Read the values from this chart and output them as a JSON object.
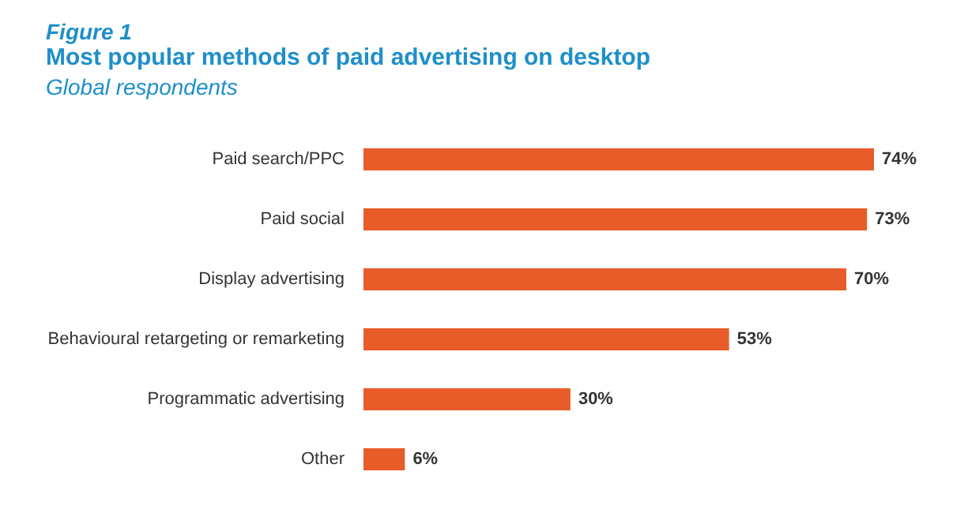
{
  "chart_data": {
    "type": "bar",
    "orientation": "horizontal",
    "title": "Most popular methods of paid advertising on desktop",
    "subtitle": "Global respondents",
    "annotations": [
      "Figure 1"
    ],
    "categories": [
      "Paid search/PPC",
      "Paid social",
      "Display advertising",
      "Behavioural retargeting or remarketing",
      "Programmatic advertising",
      "Other"
    ],
    "values": [
      74,
      73,
      70,
      53,
      30,
      6
    ],
    "value_labels": [
      "74%",
      "73%",
      "70%",
      "53%",
      "30%",
      "6%"
    ],
    "color": "#e85c2a"
  }
}
